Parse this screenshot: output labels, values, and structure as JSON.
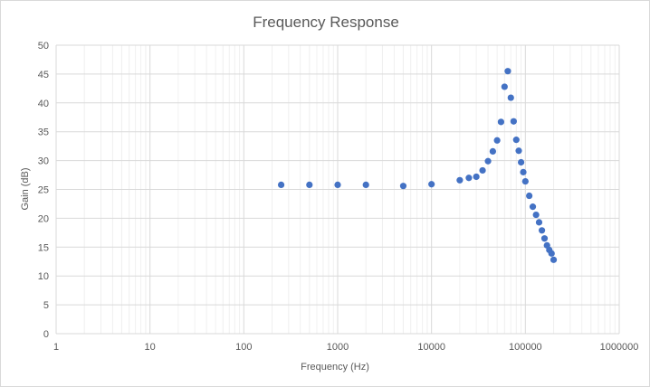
{
  "chart_data": {
    "type": "scatter",
    "title": "Frequency Response",
    "xlabel": "Frequency (Hz)",
    "ylabel": "Gain (dB)",
    "x_scale": "log",
    "xlim": [
      1,
      1000000
    ],
    "ylim": [
      0,
      50
    ],
    "x_ticks": [
      "1",
      "10",
      "100",
      "1000",
      "10000",
      "100000",
      "1000000"
    ],
    "y_ticks": [
      "0",
      "5",
      "10",
      "15",
      "20",
      "25",
      "30",
      "35",
      "40",
      "45",
      "50"
    ],
    "grid": true,
    "legend": "none",
    "marker_color": "#4472c4",
    "series": [
      {
        "x": [
          250,
          500,
          1000,
          2000,
          5000,
          10000,
          20000,
          25000,
          30000,
          35000,
          40000,
          45000,
          50000,
          55000,
          60000,
          65000,
          70000,
          75000,
          80000,
          85000,
          90000,
          95000,
          100000,
          110000,
          120000,
          130000,
          140000,
          150000,
          160000,
          170000,
          180000,
          190000,
          200000
        ],
        "y": [
          25.8,
          25.8,
          25.8,
          25.8,
          25.6,
          25.9,
          26.6,
          27.0,
          27.2,
          28.3,
          29.9,
          31.6,
          33.5,
          36.7,
          42.8,
          45.5,
          40.9,
          36.8,
          33.6,
          31.7,
          29.7,
          28.0,
          26.4,
          23.9,
          22.0,
          20.6,
          19.3,
          17.9,
          16.5,
          15.3,
          14.5,
          13.9,
          12.8
        ]
      }
    ]
  }
}
